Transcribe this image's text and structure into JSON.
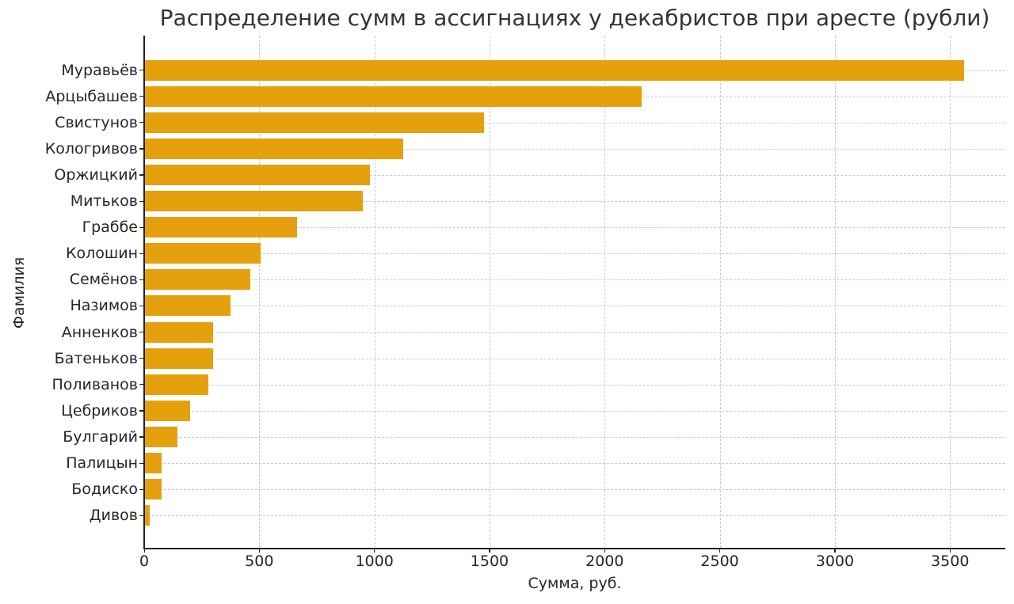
{
  "chart_data": {
    "type": "bar",
    "orientation": "horizontal",
    "title": "Распределение сумм в ассигнациях у декабристов при аресте (рубли)",
    "xlabel": "Сумма, руб.",
    "ylabel": "Фамилия",
    "xlim": [
      0,
      3740
    ],
    "xticks": [
      0,
      500,
      1000,
      1500,
      2000,
      2500,
      3000,
      3500
    ],
    "grid": true,
    "grid_style": "dashed",
    "bar_color": "#e5a00d",
    "categories": [
      "Муравьёв",
      "Арцыбашев",
      "Свистунов",
      "Кологривов",
      "Оржицкий",
      "Митьков",
      "Граббе",
      "Колошин",
      "Семёнов",
      "Назимов",
      "Анненков",
      "Батеньков",
      "Поливанов",
      "Цебриков",
      "Булгарий",
      "Палицын",
      "Бодиско",
      "Дивов"
    ],
    "values": [
      3560,
      2160,
      1475,
      1125,
      980,
      950,
      665,
      505,
      460,
      375,
      300,
      300,
      280,
      200,
      145,
      75,
      75,
      25
    ]
  }
}
